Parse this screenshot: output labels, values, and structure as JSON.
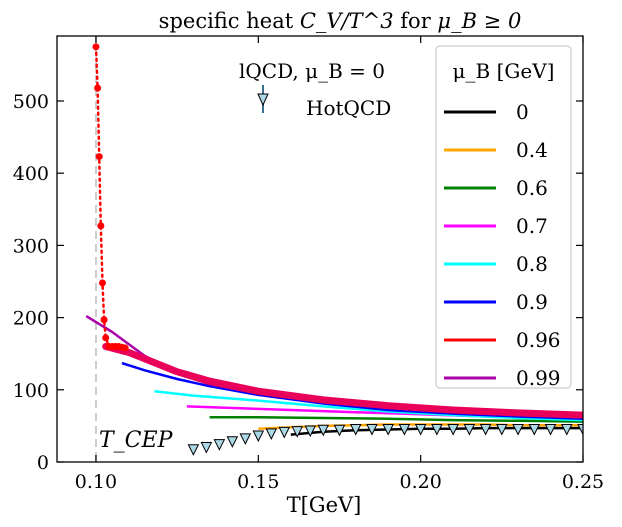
{
  "chart_data": {
    "type": "line",
    "title": "specific heat C_V/T^3 for μ_B ≥ 0",
    "title_parts": {
      "pre": "specific heat ",
      "math": "C_V/T^3",
      "mid": " for ",
      "math2": "μ_B ≥ 0"
    },
    "xlabel": "T[GeV]",
    "ylabel": "",
    "xlim": [
      0.088,
      0.25
    ],
    "ylim": [
      0,
      590
    ],
    "xticks": [
      0.1,
      0.15,
      0.2,
      0.25
    ],
    "xtick_labels": [
      "0.10",
      "0.15",
      "0.20",
      "0.25"
    ],
    "yticks": [
      0,
      100,
      200,
      300,
      400,
      500
    ],
    "ytick_labels": [
      "0",
      "100",
      "200",
      "300",
      "400",
      "500"
    ],
    "grid": false,
    "annotations": {
      "lqcd_label": "lQCD, μ_B = 0",
      "hotqcd_label": "HotQCD",
      "tcep_label": "T_CEP"
    },
    "legend": {
      "title": "μ_B [GeV]",
      "placement": "top-right",
      "entries": [
        "0",
        "0.4",
        "0.6",
        "0.7",
        "0.8",
        "0.9",
        "0.96",
        "0.99"
      ]
    },
    "tcep_vline": {
      "x": 0.1
    },
    "series": [
      {
        "name": "0",
        "color": "#000000",
        "x": [
          0.16,
          0.17,
          0.18,
          0.19,
          0.2,
          0.21,
          0.22,
          0.23,
          0.24,
          0.25
        ],
        "y": [
          38,
          42,
          44,
          45,
          46,
          46,
          47,
          47,
          47,
          47
        ]
      },
      {
        "name": "0.4",
        "color": "#ffa500",
        "x": [
          0.15,
          0.16,
          0.17,
          0.18,
          0.19,
          0.2,
          0.21,
          0.22,
          0.23,
          0.24,
          0.25
        ],
        "y": [
          46,
          48,
          50,
          51,
          52,
          52,
          52,
          52,
          51,
          51,
          51
        ]
      },
      {
        "name": "0.6",
        "color": "#008000",
        "x": [
          0.135,
          0.15,
          0.17,
          0.19,
          0.21,
          0.23,
          0.25
        ],
        "y": [
          62,
          62,
          61,
          60,
          58,
          57,
          56
        ]
      },
      {
        "name": "0.7",
        "color": "#ff00ff",
        "x": [
          0.128,
          0.14,
          0.16,
          0.18,
          0.2,
          0.22,
          0.24,
          0.25
        ],
        "y": [
          77,
          75,
          72,
          69,
          66,
          63,
          60,
          59
        ]
      },
      {
        "name": "0.8",
        "color": "#00ffff",
        "x": [
          0.118,
          0.13,
          0.15,
          0.17,
          0.19,
          0.21,
          0.23,
          0.25
        ],
        "y": [
          98,
          92,
          85,
          77,
          70,
          65,
          61,
          58
        ]
      },
      {
        "name": "0.9",
        "color": "#0000ff",
        "x": [
          0.108,
          0.115,
          0.125,
          0.135,
          0.15,
          0.17,
          0.19,
          0.21,
          0.23,
          0.25
        ],
        "y": [
          137,
          127,
          115,
          105,
          93,
          81,
          72,
          67,
          63,
          60
        ]
      },
      {
        "name": "0.96",
        "color": "#ff0000",
        "x": [
          0.104,
          0.11,
          0.115,
          0.125,
          0.135,
          0.15,
          0.17,
          0.19,
          0.21,
          0.23,
          0.25
        ],
        "y": [
          160,
          150,
          140,
          122,
          108,
          95,
          83,
          75,
          69,
          65,
          62
        ]
      },
      {
        "name": "0.99",
        "color": "#aa00aa",
        "x": [
          0.097,
          0.105,
          0.115,
          0.125,
          0.135,
          0.15,
          0.17,
          0.19,
          0.21,
          0.23,
          0.25
        ],
        "y": [
          202,
          180,
          147,
          123,
          108,
          95,
          84,
          76,
          70,
          66,
          63
        ]
      }
    ],
    "red_band": {
      "color": "#e8005a",
      "x": [
        0.103,
        0.11,
        0.115,
        0.125,
        0.135,
        0.15,
        0.17,
        0.19,
        0.21,
        0.23,
        0.25
      ],
      "y": [
        160,
        152,
        143,
        125,
        112,
        98,
        86,
        78,
        72,
        68,
        65
      ]
    },
    "red_dotted_points": {
      "color": "#ff0000",
      "x": [
        0.1,
        0.1005,
        0.101,
        0.1015,
        0.102,
        0.1025,
        0.103,
        0.104,
        0.105,
        0.106,
        0.107,
        0.108,
        0.109
      ],
      "y": [
        575,
        518,
        423,
        327,
        248,
        197,
        172,
        160,
        160,
        160,
        160,
        159,
        158
      ]
    },
    "hotqcd_points": {
      "color": "#add8e6",
      "x": [
        0.13,
        0.134,
        0.138,
        0.142,
        0.146,
        0.15,
        0.154,
        0.158,
        0.162,
        0.166,
        0.17,
        0.175,
        0.18,
        0.185,
        0.19,
        0.195,
        0.2,
        0.205,
        0.21,
        0.215,
        0.22,
        0.225,
        0.23,
        0.235,
        0.24,
        0.245,
        0.25
      ],
      "y": [
        17,
        20,
        24,
        28,
        32,
        36,
        39,
        41,
        42,
        43,
        44,
        44,
        45,
        45,
        45,
        45,
        45,
        45,
        45,
        45,
        45,
        45,
        45,
        45,
        45,
        45,
        45
      ]
    }
  }
}
